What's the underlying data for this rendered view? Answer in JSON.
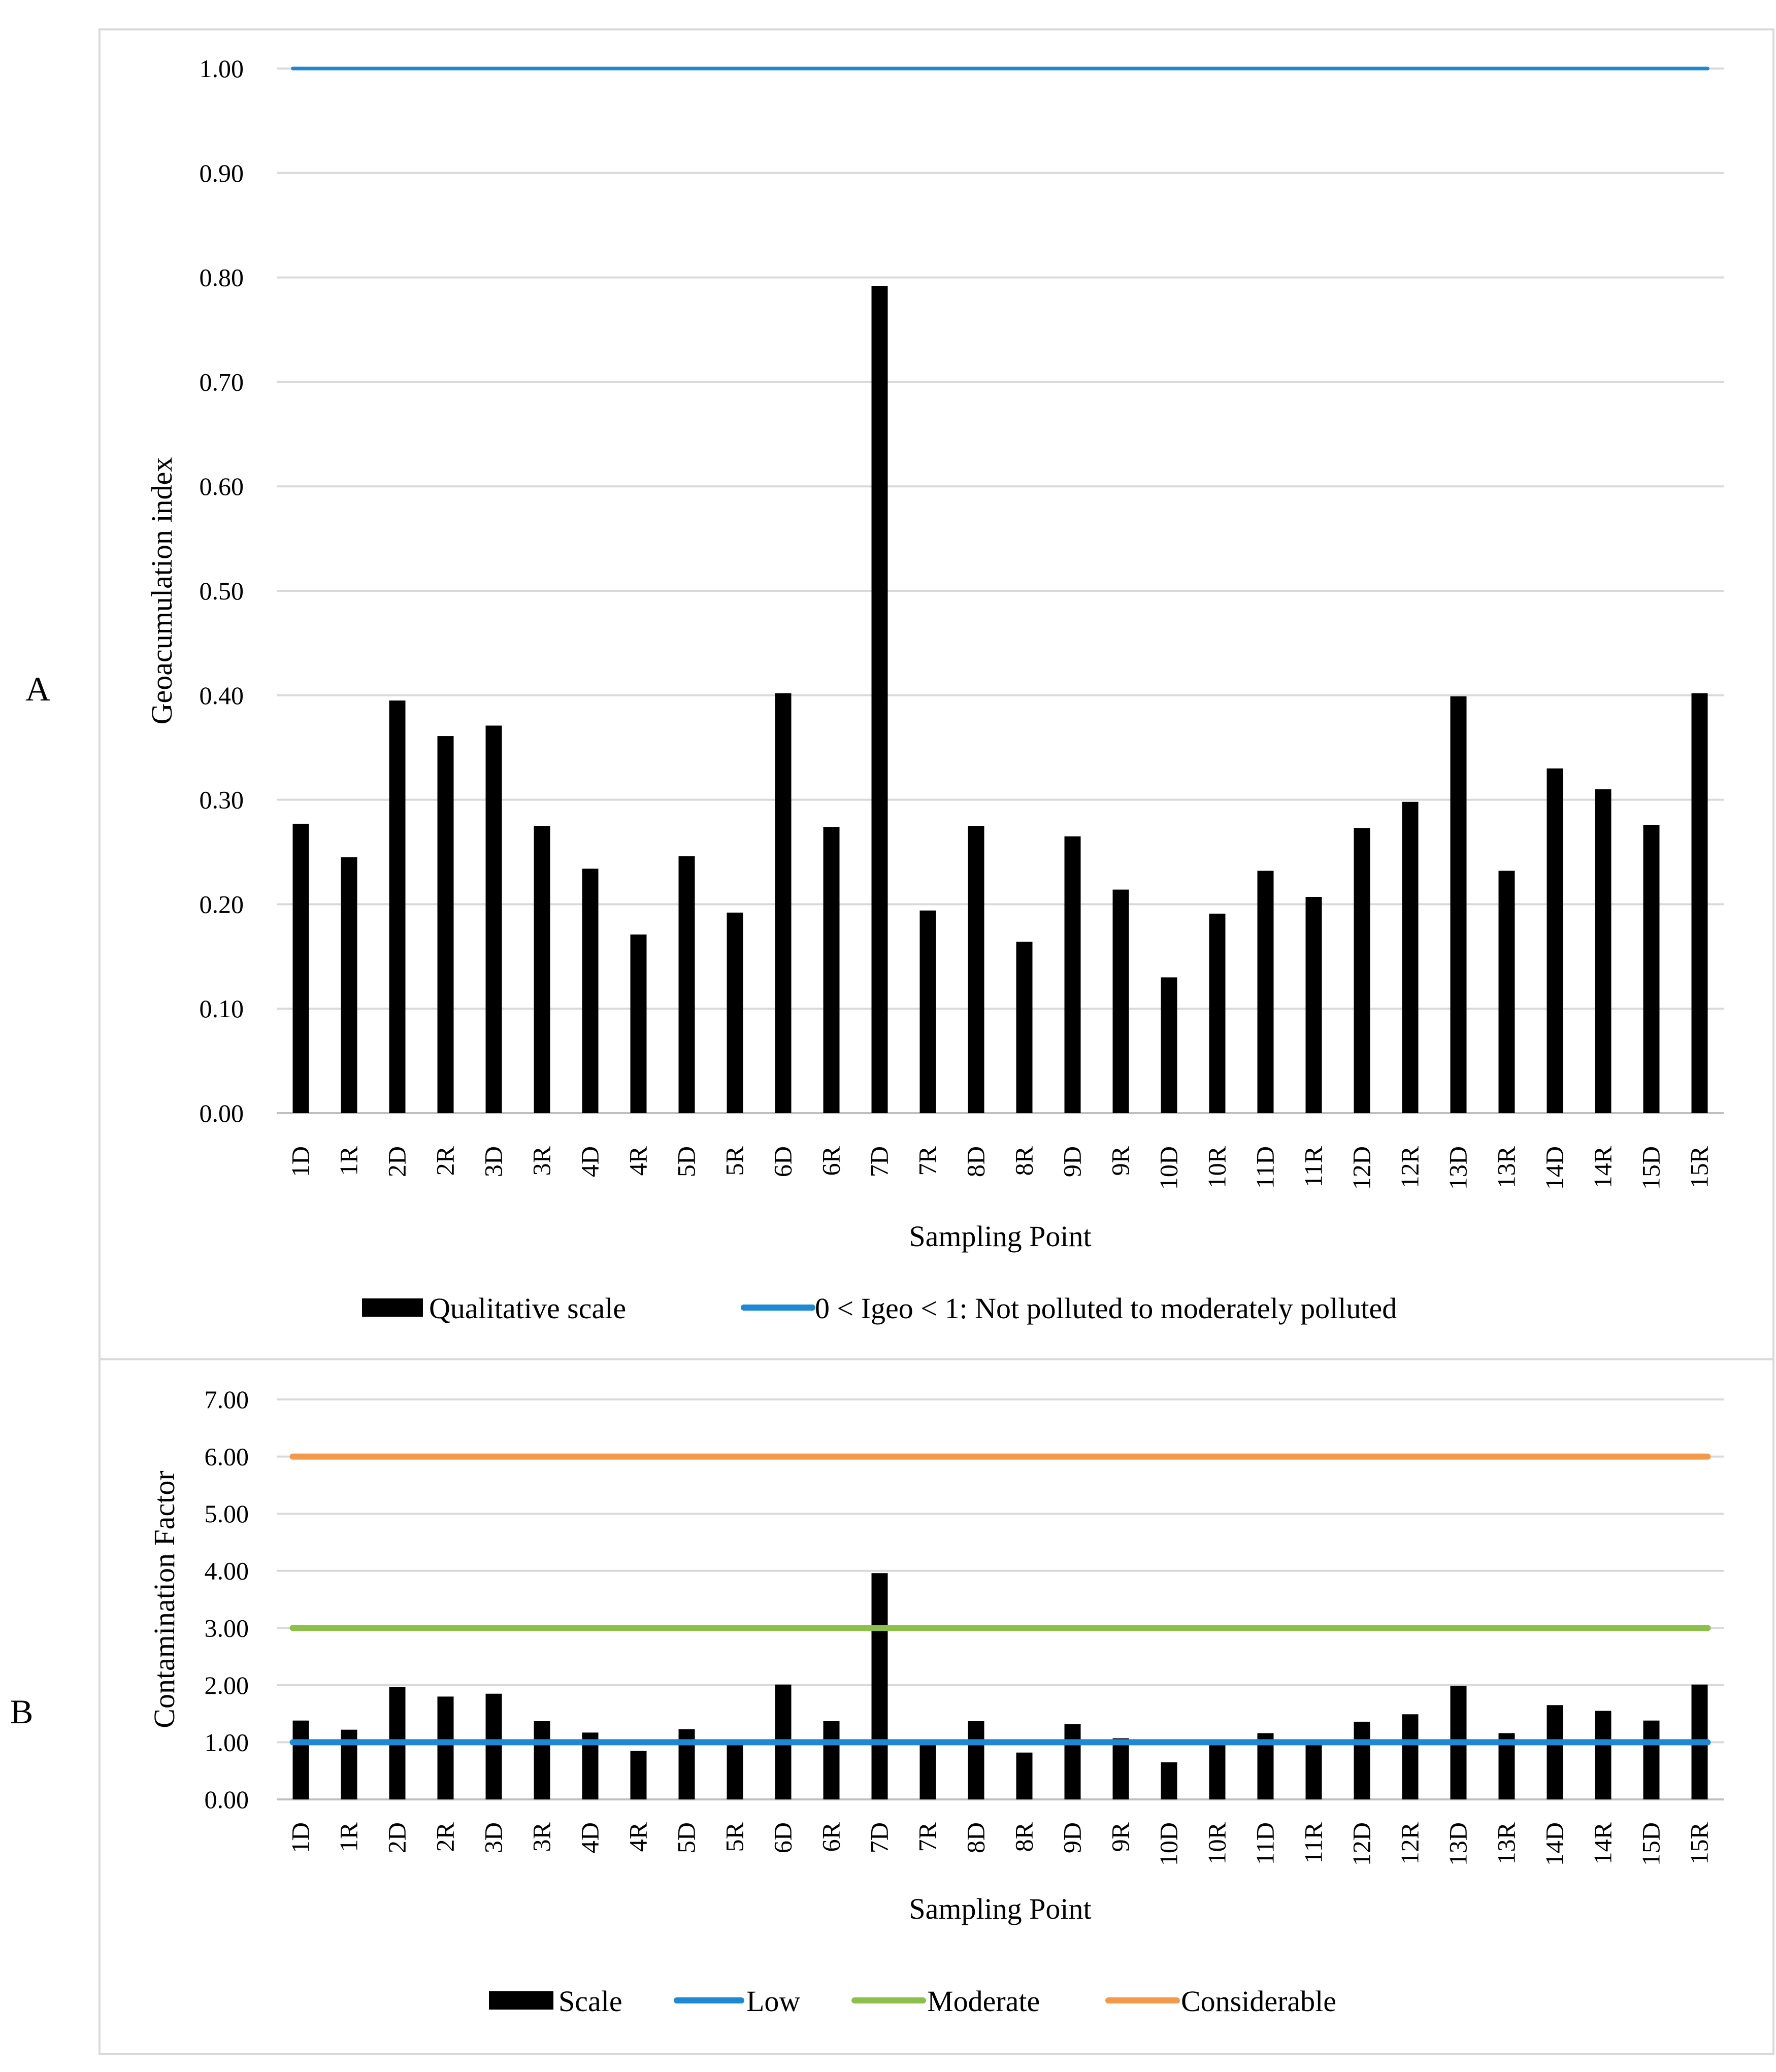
{
  "panel_labels": [
    "A",
    "B"
  ],
  "chart_data": [
    {
      "type": "bar",
      "panel": "A",
      "categories": [
        "1D",
        "1R",
        "2D",
        "2R",
        "3D",
        "3R",
        "4D",
        "4R",
        "5D",
        "5R",
        "6D",
        "6R",
        "7D",
        "7R",
        "8D",
        "8R",
        "9D",
        "9R",
        "10D",
        "10R",
        "11D",
        "11R",
        "12D",
        "12R",
        "13D",
        "13R",
        "14D",
        "14R",
        "15D",
        "15R"
      ],
      "series": [
        {
          "name": "Qualitative scale",
          "kind": "bar",
          "color": "#000000",
          "values": [
            0.277,
            0.245,
            0.395,
            0.361,
            0.371,
            0.275,
            0.234,
            0.171,
            0.246,
            0.192,
            0.402,
            0.274,
            0.792,
            0.194,
            0.275,
            0.164,
            0.265,
            0.214,
            0.13,
            0.191,
            0.232,
            0.207,
            0.273,
            0.298,
            0.399,
            0.232,
            0.33,
            0.31,
            0.276,
            0.402
          ]
        }
      ],
      "reference_lines": [
        {
          "name": "0 < Igeo < 1: Not polluted to moderately polluted",
          "value": 1.0,
          "color": "#1E88D4"
        }
      ],
      "xlabel": "Sampling Point",
      "ylabel": "Geoacumulation index",
      "ylim": [
        0,
        1.0
      ],
      "yticks": [
        "0.00",
        "0.10",
        "0.20",
        "0.30",
        "0.40",
        "0.50",
        "0.60",
        "0.70",
        "0.80",
        "0.90",
        "1.00"
      ],
      "grid": true,
      "legend": "bottom"
    },
    {
      "type": "bar",
      "panel": "B",
      "categories": [
        "1D",
        "1R",
        "2D",
        "2R",
        "3D",
        "3R",
        "4D",
        "4R",
        "5D",
        "5R",
        "6D",
        "6R",
        "7D",
        "7R",
        "8D",
        "8R",
        "9D",
        "9R",
        "10D",
        "10R",
        "11D",
        "11R",
        "12D",
        "12R",
        "13D",
        "13R",
        "14D",
        "14R",
        "15D",
        "15R"
      ],
      "series": [
        {
          "name": "Scale",
          "kind": "bar",
          "color": "#000000",
          "values": [
            1.38,
            1.22,
            1.97,
            1.8,
            1.85,
            1.37,
            1.17,
            0.85,
            1.23,
            0.96,
            2.01,
            1.37,
            3.96,
            0.97,
            1.37,
            0.82,
            1.32,
            1.07,
            0.65,
            0.95,
            1.16,
            1.03,
            1.36,
            1.49,
            1.99,
            1.16,
            1.65,
            1.55,
            1.38,
            2.01
          ]
        }
      ],
      "reference_lines": [
        {
          "name": "Low",
          "value": 1.0,
          "color": "#1E88D4"
        },
        {
          "name": "Moderate",
          "value": 3.0,
          "color": "#8DC04B"
        },
        {
          "name": "Considerable",
          "value": 6.0,
          "color": "#F4994A"
        }
      ],
      "xlabel": "Sampling Point",
      "ylabel": "Contamination Factor",
      "ylim": [
        0,
        7.0
      ],
      "yticks": [
        "0.00",
        "1.00",
        "2.00",
        "3.00",
        "4.00",
        "5.00",
        "6.00",
        "7.00"
      ],
      "grid": true,
      "legend": "bottom"
    }
  ]
}
